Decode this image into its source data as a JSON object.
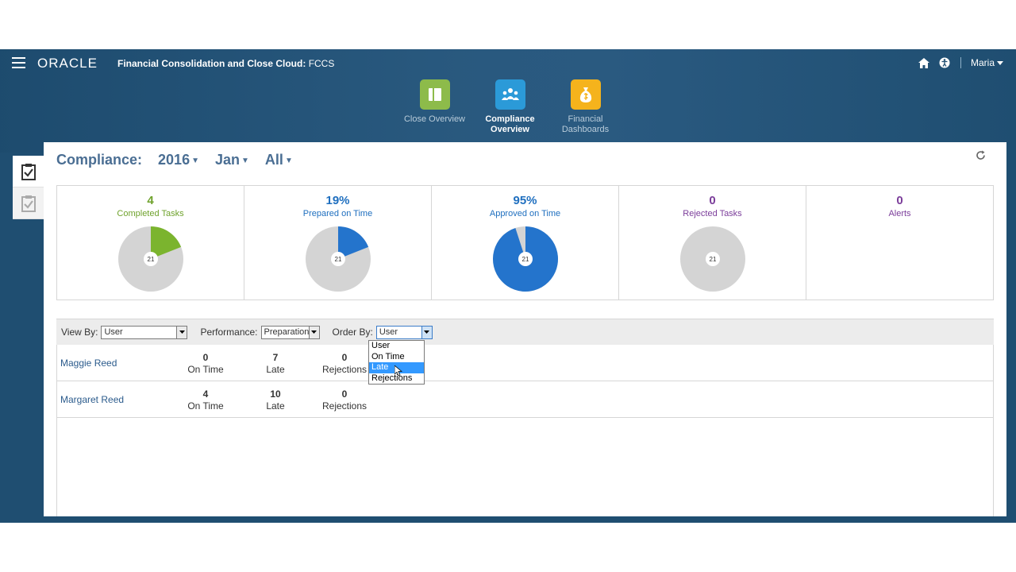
{
  "header": {
    "logo": "ORACLE",
    "title": "Financial Consolidation and Close Cloud:",
    "subtitle": "FCCS",
    "user": "Maria"
  },
  "nav_cards": [
    {
      "label": "Close Overview",
      "icon": "book-icon",
      "color": "#8dbb4a"
    },
    {
      "label": "Compliance Overview",
      "icon": "people-icon",
      "color": "#2b9ad8"
    },
    {
      "label": "Financial Dashboards",
      "icon": "money-bag-icon",
      "color": "#f5b31c"
    }
  ],
  "page": {
    "title": "Compliance:",
    "year": "2016",
    "period": "Jan",
    "filter": "All"
  },
  "metrics": [
    {
      "value": "4",
      "caption": "Completed Tasks",
      "color": "#6fa22c",
      "total": "21",
      "fraction": 0.19,
      "fill": "#7bb42e"
    },
    {
      "value": "19%",
      "caption": "Prepared on Time",
      "color": "#1f6fbf",
      "total": "21",
      "fraction": 0.19,
      "fill": "#2474cc"
    },
    {
      "value": "95%",
      "caption": "Approved on Time",
      "color": "#1f6fbf",
      "total": "21",
      "fraction": 0.95,
      "fill": "#2474cc"
    },
    {
      "value": "0",
      "caption": "Rejected Tasks",
      "color": "#7b3d9a",
      "total": "21",
      "fraction": 0,
      "fill": "#7b3d9a"
    },
    {
      "value": "0",
      "caption": "Alerts",
      "color": "#7b3d9a"
    }
  ],
  "filters": {
    "view_by_label": "View By:",
    "view_by_value": "User",
    "performance_label": "Performance:",
    "performance_value": "Preparation",
    "order_by_label": "Order By:",
    "order_by_value": "User",
    "order_by_options": [
      "User",
      "On Time",
      "Late",
      "Rejections"
    ]
  },
  "rows": [
    {
      "name": "Maggie Reed",
      "on_time": "0",
      "late": "7",
      "rejections": "0"
    },
    {
      "name": "Margaret Reed",
      "on_time": "4",
      "late": "10",
      "rejections": "0"
    }
  ],
  "labels": {
    "on_time": "On Time",
    "late": "Late",
    "rejections": "Rejections"
  }
}
